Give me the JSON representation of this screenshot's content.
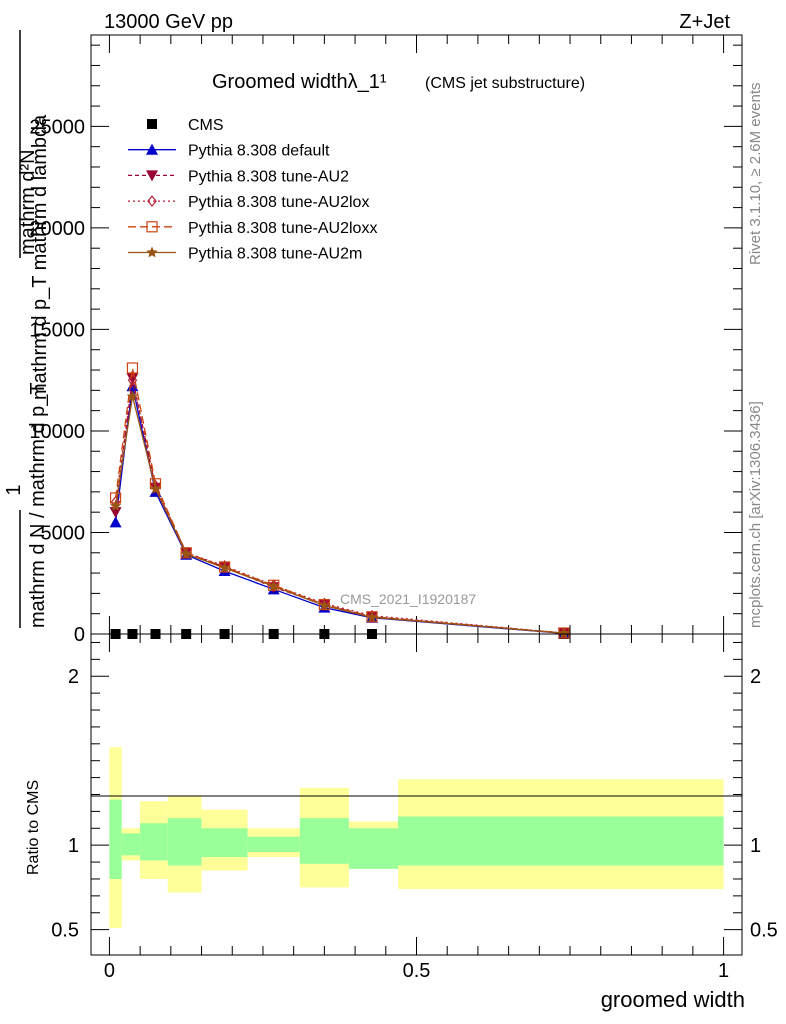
{
  "header": {
    "left": "13000 GeV pp",
    "right": "Z+Jet"
  },
  "side_labels": {
    "rivet": "Rivet 3.1.10, ≥ 2.6M events",
    "mcplots": "mcplots.cern.ch [arXiv:1306.3436]"
  },
  "watermark": "CMS_2021_I1920187",
  "chart_data": [
    {
      "type": "line",
      "title": "Groomed widthλ_1¹",
      "subtitle": "(CMS jet substructure)",
      "ylabel_lines": [
        "mathrm d²N",
        "mathrm d p_T mathrm d lambda",
        "1",
        "mathrm d N / mathrm d p_T"
      ],
      "xlabel": "groomed width",
      "xlim": [
        -0.03,
        1.03
      ],
      "ylim": [
        0,
        29500
      ],
      "y_ticks": [
        0,
        5000,
        10000,
        15000,
        20000,
        25000
      ],
      "y_tick_labels": [
        "0",
        "5000",
        "10000",
        "15000",
        "20000",
        "25000"
      ],
      "legend_position": "top-left",
      "x": [
        0.01,
        0.0375,
        0.075,
        0.125,
        0.1875,
        0.2675,
        0.35,
        0.4275,
        0.74
      ],
      "series": [
        {
          "name": "CMS",
          "color": "#000000",
          "marker": "square",
          "dash": "none",
          "values": [
            0,
            0,
            0,
            0,
            0,
            0,
            0,
            0,
            0
          ]
        },
        {
          "name": "Pythia 8.308 default",
          "color": "#0000cc",
          "marker": "triangle-up",
          "dash": "solid",
          "values": [
            5500,
            12200,
            7000,
            3900,
            3100,
            2200,
            1300,
            800,
            30
          ]
        },
        {
          "name": "Pythia 8.308 tune-AU2",
          "color": "#990033",
          "marker": "triangle-down",
          "dash": "4,3",
          "values": [
            6000,
            12600,
            7200,
            4000,
            3300,
            2300,
            1450,
            850,
            40
          ]
        },
        {
          "name": "Pythia 8.308 tune-AU2lox",
          "color": "#bb1a33",
          "marker": "diamond",
          "dash": "2,3",
          "values": [
            6500,
            12500,
            7300,
            4000,
            3350,
            2400,
            1500,
            900,
            50
          ]
        },
        {
          "name": "Pythia 8.308 tune-AU2loxx",
          "color": "#cc4411",
          "marker": "square-open",
          "dash": "8,4",
          "values": [
            6700,
            13100,
            7400,
            4000,
            3300,
            2400,
            1450,
            850,
            50
          ]
        },
        {
          "name": "Pythia 8.308 tune-AU2m",
          "color": "#995511",
          "marker": "star",
          "dash": "solid",
          "values": [
            6300,
            11700,
            7150,
            3950,
            3250,
            2350,
            1400,
            820,
            40
          ]
        }
      ]
    },
    {
      "type": "area",
      "ylabel": "Ratio to CMS",
      "xlabel": "groomed width",
      "xlim": [
        -0.03,
        1.03
      ],
      "ylim": [
        0.35,
        2.25
      ],
      "y_ticks": [
        0.5,
        1,
        2
      ],
      "y_tick_labels": [
        "0.5",
        "1",
        "2"
      ],
      "x_ticks": [
        0,
        0.5,
        1
      ],
      "x_tick_labels": [
        "0",
        "0.5",
        "1"
      ],
      "reference_line": 1,
      "bins": [
        {
          "lo": 0.0,
          "hi": 0.02,
          "band_inner": [
            0.8,
            1.27
          ],
          "band_outer": [
            0.51,
            1.58
          ]
        },
        {
          "lo": 0.02,
          "hi": 0.05,
          "band_inner": [
            0.94,
            1.07
          ],
          "band_outer": [
            0.91,
            1.1
          ]
        },
        {
          "lo": 0.05,
          "hi": 0.095,
          "band_inner": [
            0.91,
            1.13
          ],
          "band_outer": [
            0.8,
            1.26
          ]
        },
        {
          "lo": 0.095,
          "hi": 0.15,
          "band_inner": [
            0.88,
            1.16
          ],
          "band_outer": [
            0.72,
            1.29
          ]
        },
        {
          "lo": 0.15,
          "hi": 0.225,
          "band_inner": [
            0.93,
            1.1
          ],
          "band_outer": [
            0.85,
            1.21
          ]
        },
        {
          "lo": 0.225,
          "hi": 0.31,
          "band_inner": [
            0.96,
            1.05
          ],
          "band_outer": [
            0.93,
            1.1
          ]
        },
        {
          "lo": 0.31,
          "hi": 0.39,
          "band_inner": [
            0.89,
            1.16
          ],
          "band_outer": [
            0.75,
            1.34
          ]
        },
        {
          "lo": 0.39,
          "hi": 0.47,
          "band_inner": [
            0.86,
            1.1
          ],
          "band_outer": [
            0.86,
            1.14
          ]
        },
        {
          "lo": 0.47,
          "hi": 1.0,
          "band_inner": [
            0.88,
            1.17
          ],
          "band_outer": [
            0.74,
            1.39
          ]
        }
      ],
      "band_colors": {
        "inner": "#99ff99",
        "outer": "#ffff99"
      }
    }
  ]
}
